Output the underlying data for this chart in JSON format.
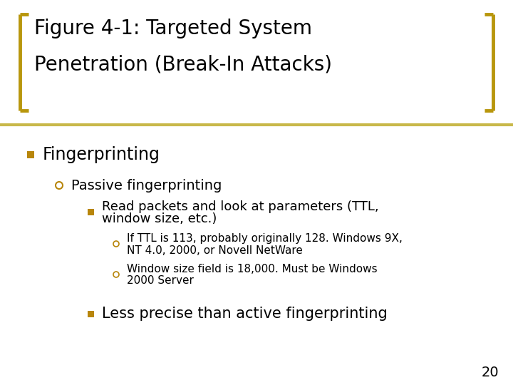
{
  "title_line1": "Figure 4-1: Targeted System",
  "title_line2": "Penetration (Break-In Attacks)",
  "title_fontsize": 20,
  "title_color": "#000000",
  "bracket_color": "#b8960c",
  "bg_color": "#ffffff",
  "separator_color": "#c8b84a",
  "bullet_color": "#b8860b",
  "level1_bullet": "■",
  "level1_text": "Fingerprinting",
  "level1_fontsize": 17,
  "level2_bullet": "○",
  "level2_text": "Passive fingerprinting",
  "level2_fontsize": 14,
  "level3_bullet": "■",
  "level3_text_line1": "Read packets and look at parameters (TTL,",
  "level3_text_line2": "window size, etc.)",
  "level3_fontsize": 13,
  "level4_bullet": "○",
  "level4a_line1": "If TTL is 113, probably originally 128. Windows 9X,",
  "level4a_line2": "NT 4.0, 2000, or Novell NetWare",
  "level4b_line1": "Window size field is 18,000. Must be Windows",
  "level4b_line2": "2000 Server",
  "level4_fontsize": 11,
  "level3b_text": "Less precise than active fingerprinting",
  "level3b_fontsize": 15,
  "page_number": "20",
  "page_fontsize": 14
}
